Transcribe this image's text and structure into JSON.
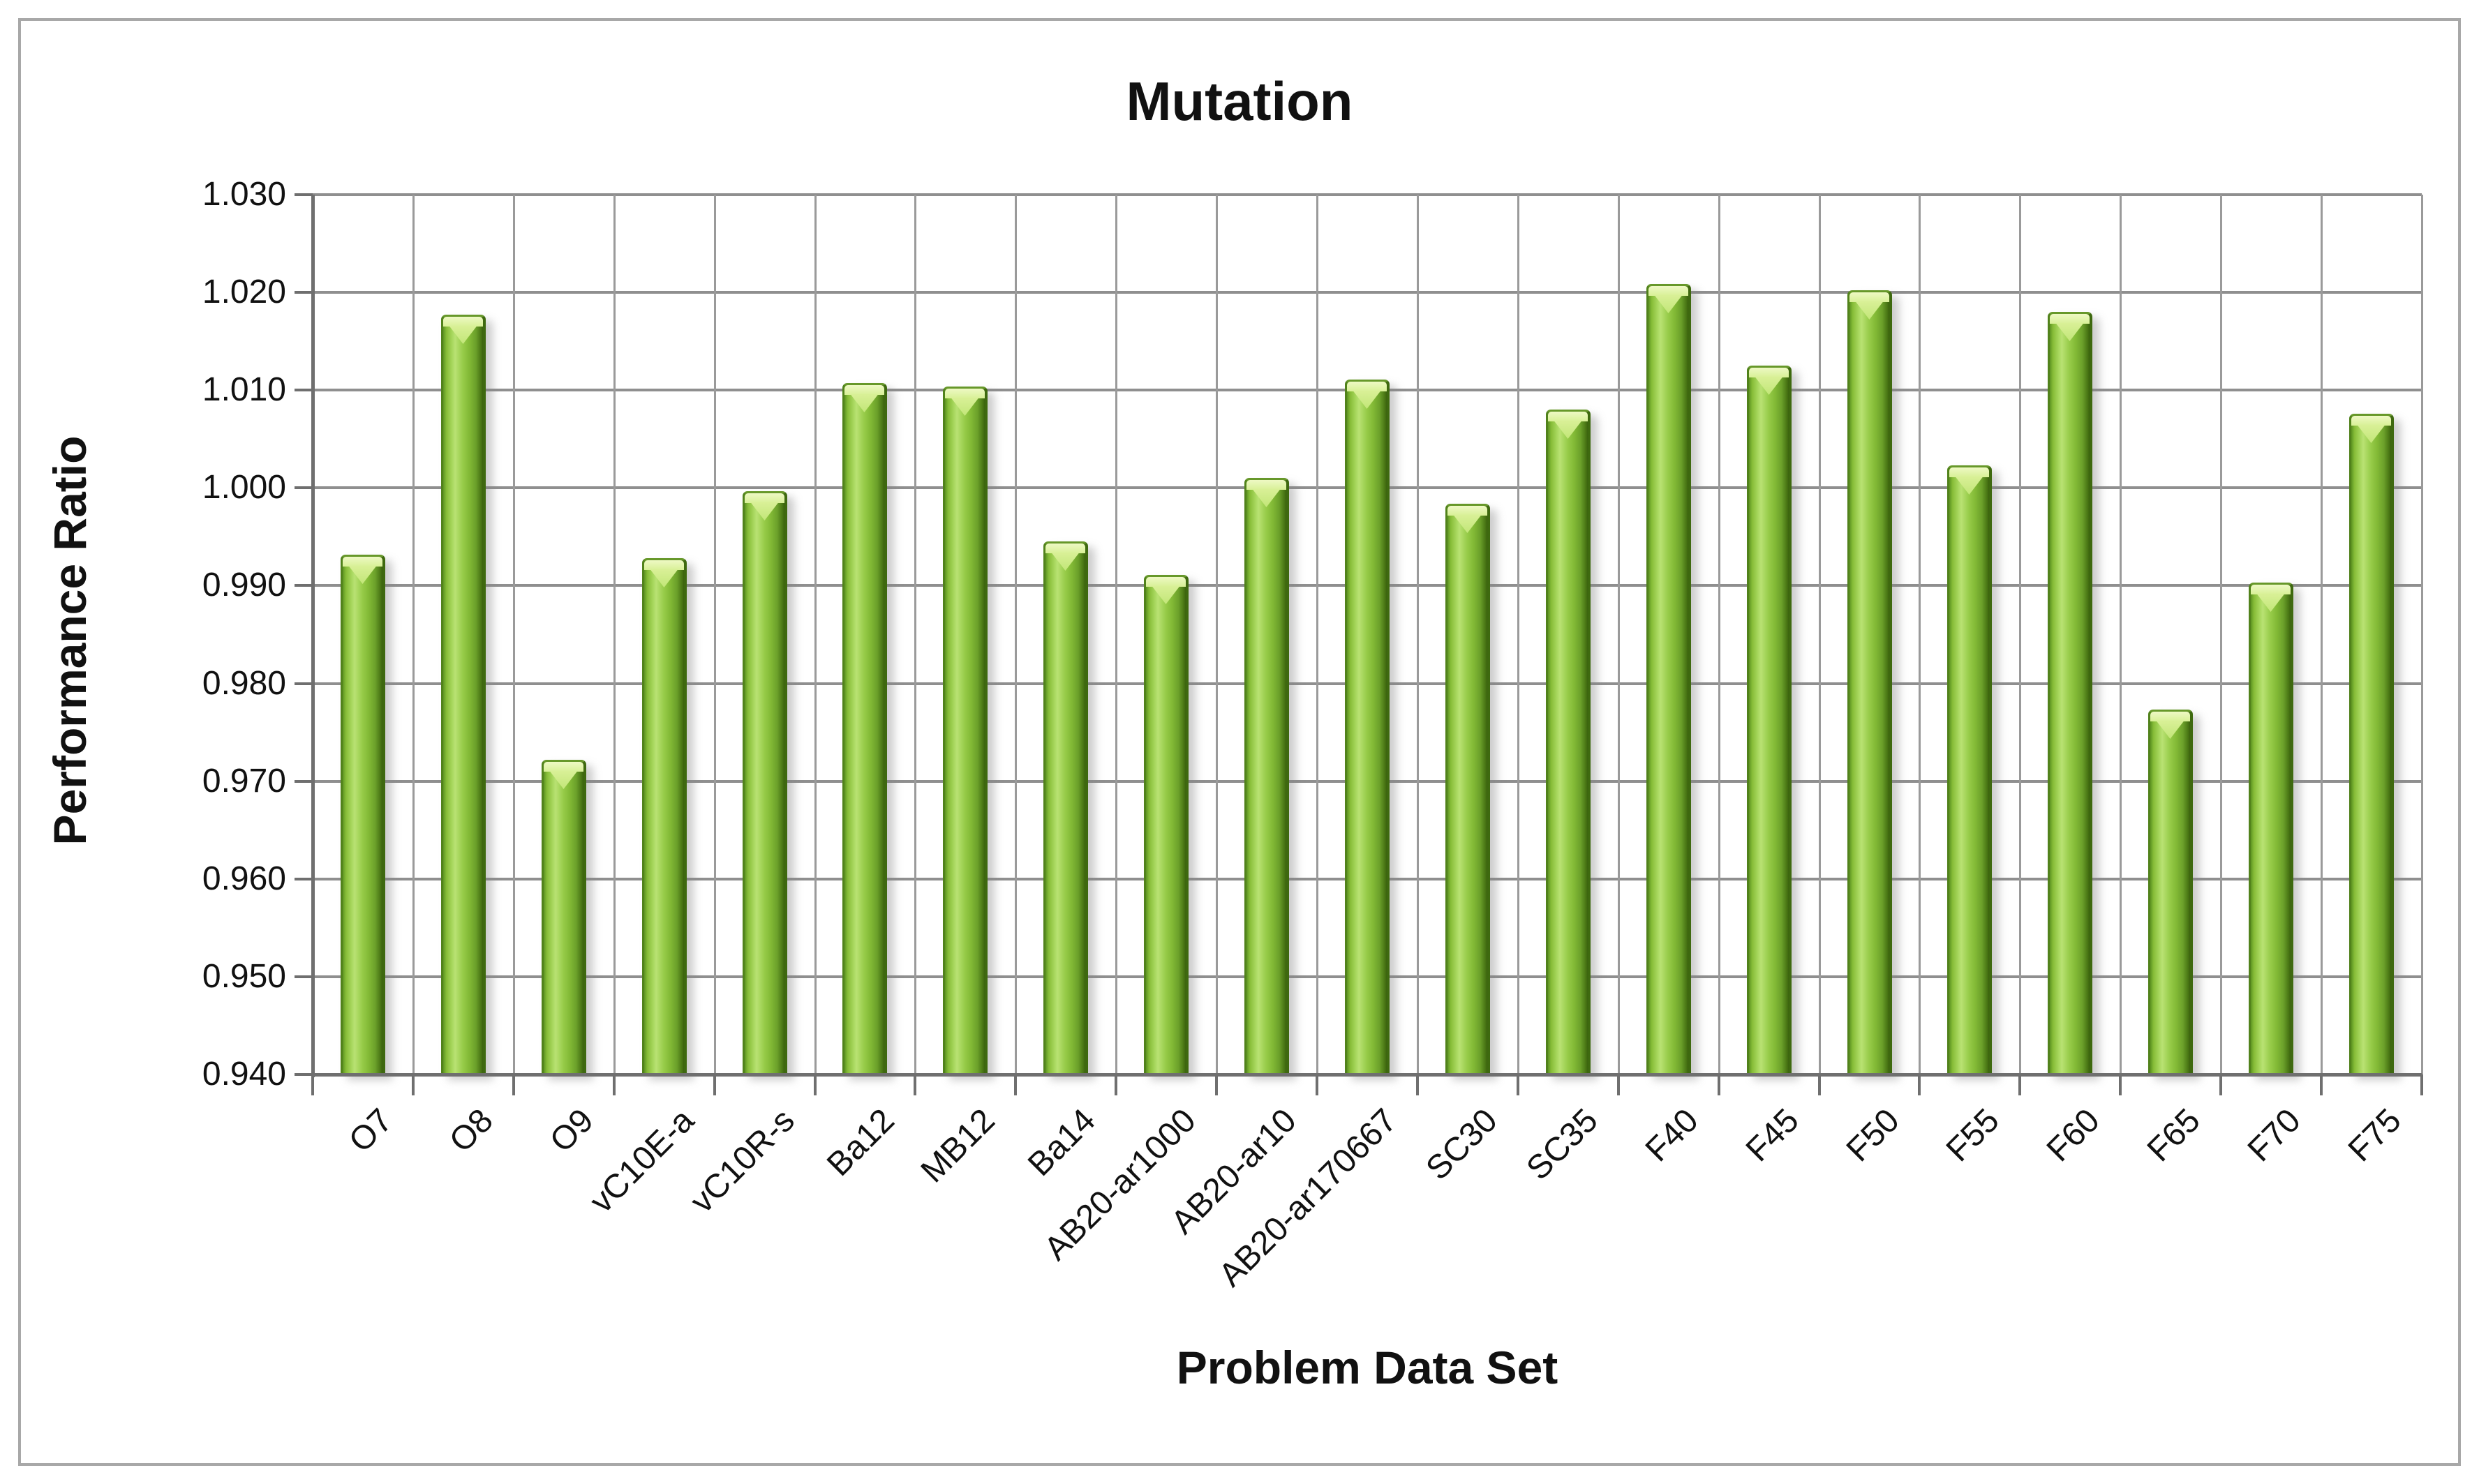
{
  "chart_data": {
    "type": "bar",
    "title": "Mutation",
    "xlabel": "Problem Data Set",
    "ylabel": "Performance Ratio",
    "categories": [
      "O7",
      "O8",
      "O9",
      "vC10E-a",
      "vC10R-s",
      "Ba12",
      "MB12",
      "Ba14",
      "AB20-ar1000",
      "AB20-ar10",
      "AB20-ar170667",
      "SC30",
      "SC35",
      "F40",
      "F45",
      "F50",
      "F55",
      "F60",
      "F65",
      "F70",
      "F75"
    ],
    "values": [
      0.9932,
      1.0177,
      0.9722,
      0.9928,
      0.9997,
      1.0107,
      1.0104,
      0.9945,
      0.9911,
      1.001,
      1.0111,
      0.9984,
      1.008,
      1.0209,
      1.0125,
      1.0202,
      1.0023,
      1.018,
      0.9773,
      0.9903,
      1.0076
    ],
    "ylim": [
      0.94,
      1.03
    ],
    "ytick_step": 0.01,
    "ytick_labels": [
      "1.030",
      "1.020",
      "1.010",
      "1.000",
      "0.990",
      "0.980",
      "0.970",
      "0.960",
      "0.950",
      "0.940"
    ],
    "grid": "horizontal major gridlines plus vertical category-boundary lines",
    "legend": "none",
    "colors": {
      "bar_main": "#7DB832",
      "bar_highlight": "#B9E273",
      "bar_dark_edge": "#3E690F",
      "bar_cap": "#D9F19E",
      "gridline": "#8F8F8F",
      "axis": "#6F6F6F",
      "text": "#111111",
      "background": "#FFFFFF",
      "frame_border": "#A8A8A8"
    }
  }
}
